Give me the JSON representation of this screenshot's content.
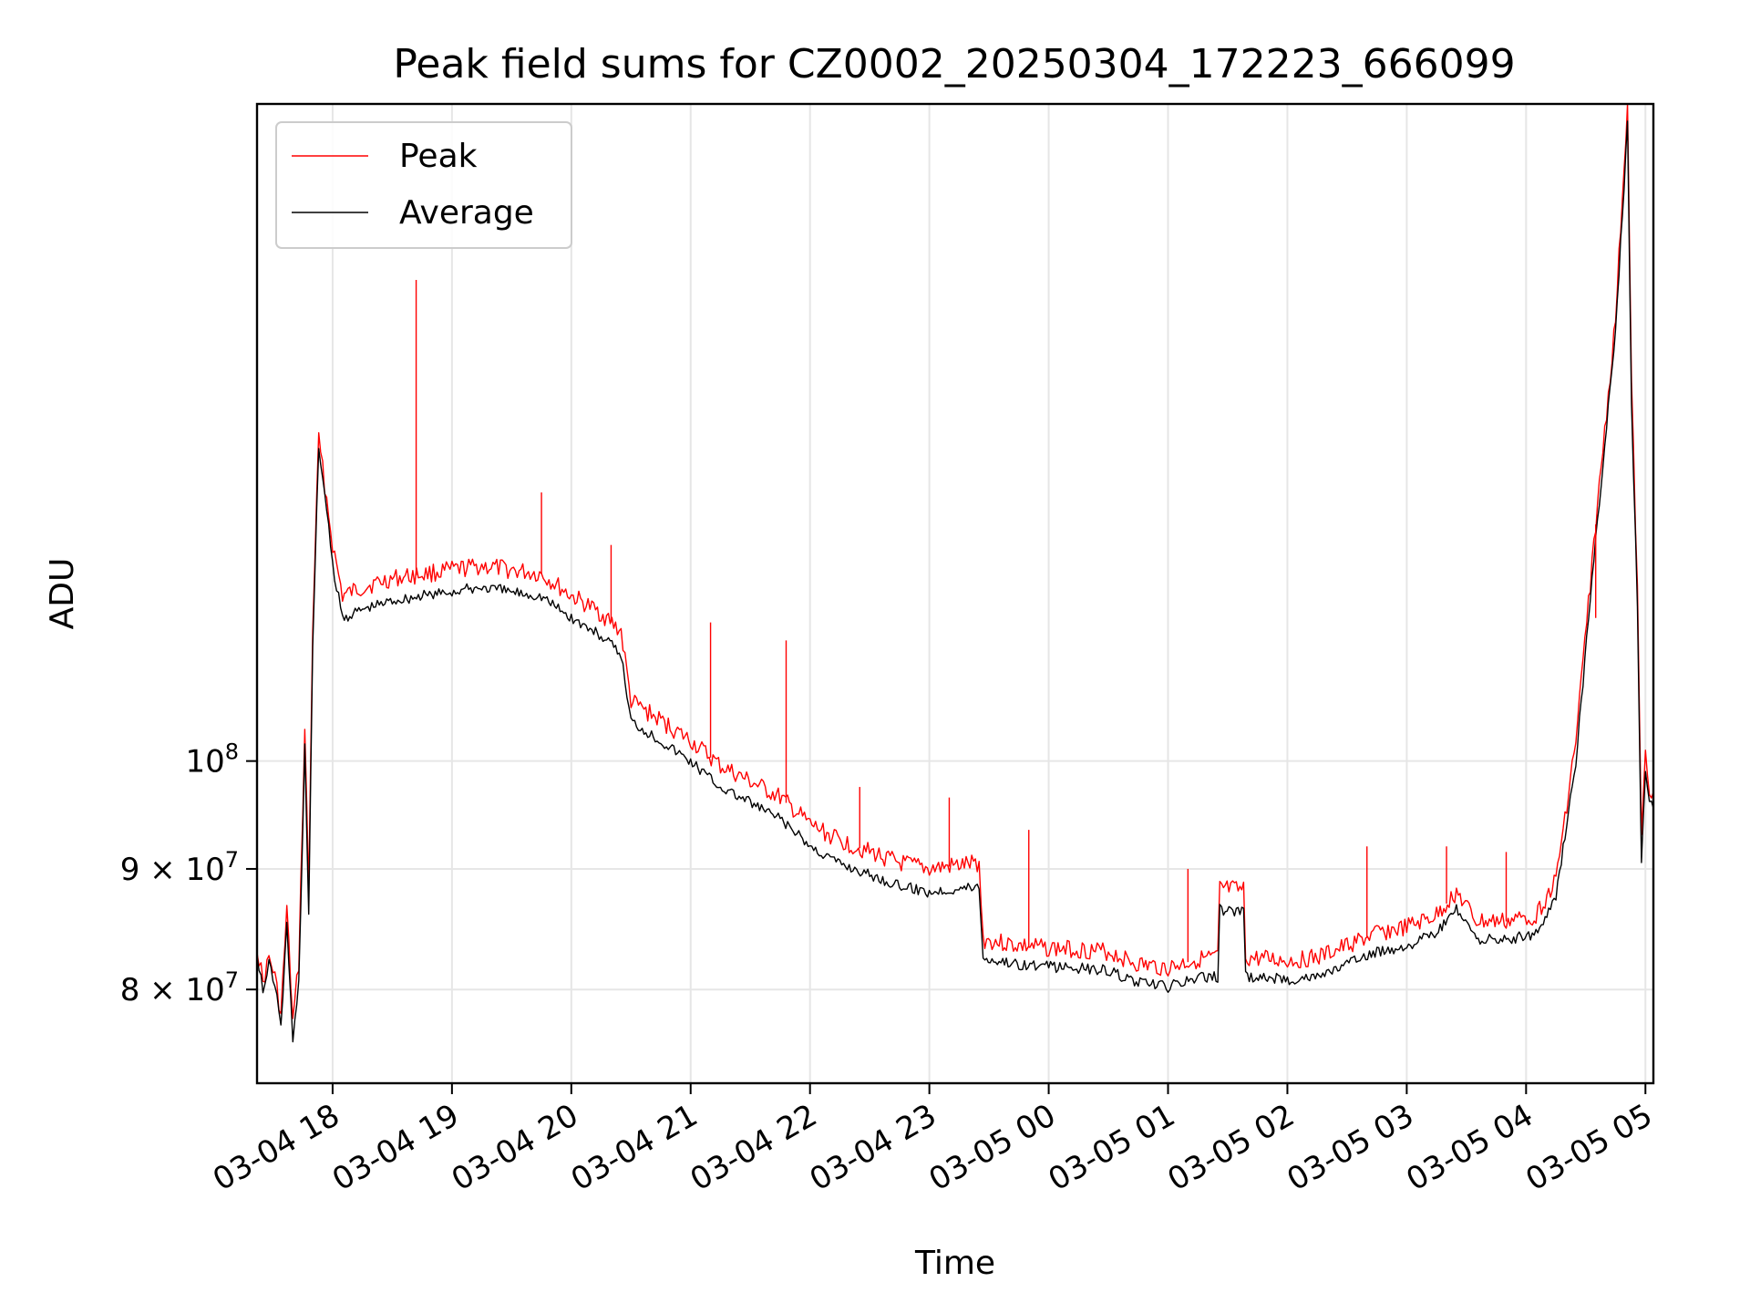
{
  "chart_data": {
    "type": "line",
    "title": "Peak field sums for CZ0002_20250304_172223_666099",
    "xlabel": "Time",
    "ylabel": "ADU",
    "yscale": "log",
    "grid": true,
    "legend_position": "top-left",
    "xlim": [
      "2025-03-04 17:22",
      "2025-03-05 05:04"
    ],
    "ylim": [
      73000000,
      190000000
    ],
    "x_ticks": [
      {
        "value": "2025-03-04 18:00",
        "label": "03-04 18"
      },
      {
        "value": "2025-03-04 19:00",
        "label": "03-04 19"
      },
      {
        "value": "2025-03-04 20:00",
        "label": "03-04 20"
      },
      {
        "value": "2025-03-04 21:00",
        "label": "03-04 21"
      },
      {
        "value": "2025-03-04 22:00",
        "label": "03-04 22"
      },
      {
        "value": "2025-03-04 23:00",
        "label": "03-04 23"
      },
      {
        "value": "2025-03-05 00:00",
        "label": "03-05 00"
      },
      {
        "value": "2025-03-05 01:00",
        "label": "03-05 01"
      },
      {
        "value": "2025-03-05 02:00",
        "label": "03-05 02"
      },
      {
        "value": "2025-03-05 03:00",
        "label": "03-05 03"
      },
      {
        "value": "2025-03-05 04:00",
        "label": "03-05 04"
      },
      {
        "value": "2025-03-05 05:00",
        "label": "03-05 05"
      }
    ],
    "y_ticks": [
      {
        "value": 80000000,
        "label": "8 × 10",
        "exp": "7"
      },
      {
        "value": 90000000,
        "label": "9 × 10",
        "exp": "7"
      },
      {
        "value": 100000000,
        "label": "10",
        "exp": "8"
      }
    ],
    "series": [
      {
        "name": "Average",
        "color": "#000000",
        "points": [
          [
            "2025-03-04 17:22",
            83000000
          ],
          [
            "2025-03-04 17:25",
            79800000
          ],
          [
            "2025-03-04 17:28",
            82000000
          ],
          [
            "2025-03-04 17:31",
            80500000
          ],
          [
            "2025-03-04 17:34",
            77000000
          ],
          [
            "2025-03-04 17:37",
            85500000
          ],
          [
            "2025-03-04 17:40",
            76000000
          ],
          [
            "2025-03-04 17:43",
            80500000
          ],
          [
            "2025-03-04 17:46",
            101500000
          ],
          [
            "2025-03-04 17:48",
            86000000
          ],
          [
            "2025-03-04 17:50",
            112000000
          ],
          [
            "2025-03-04 17:53",
            136000000
          ],
          [
            "2025-03-04 17:56",
            130000000
          ],
          [
            "2025-03-04 18:00",
            121000000
          ],
          [
            "2025-03-04 18:05",
            115000000
          ],
          [
            "2025-03-04 18:15",
            116000000
          ],
          [
            "2025-03-04 18:30",
            117000000
          ],
          [
            "2025-03-04 18:45",
            117500000
          ],
          [
            "2025-03-04 19:00",
            118000000
          ],
          [
            "2025-03-04 19:15",
            118500000
          ],
          [
            "2025-03-04 19:30",
            118000000
          ],
          [
            "2025-03-04 19:45",
            117500000
          ],
          [
            "2025-03-04 20:00",
            115000000
          ],
          [
            "2025-03-04 20:15",
            113000000
          ],
          [
            "2025-03-04 20:25",
            111000000
          ],
          [
            "2025-03-04 20:30",
            104000000
          ],
          [
            "2025-03-04 20:45",
            102000000
          ],
          [
            "2025-03-04 21:00",
            100000000
          ],
          [
            "2025-03-04 21:15",
            97500000
          ],
          [
            "2025-03-04 21:30",
            96000000
          ],
          [
            "2025-03-04 21:45",
            94500000
          ],
          [
            "2025-03-04 22:00",
            92000000
          ],
          [
            "2025-03-04 22:15",
            90500000
          ],
          [
            "2025-03-04 22:30",
            89500000
          ],
          [
            "2025-03-04 22:45",
            88500000
          ],
          [
            "2025-03-04 23:00",
            88000000
          ],
          [
            "2025-03-04 23:25",
            88500000
          ],
          [
            "2025-03-04 23:27",
            82500000
          ],
          [
            "2025-03-04 23:45",
            82000000
          ],
          [
            "2025-03-05 00:00",
            81800000
          ],
          [
            "2025-03-05 00:15",
            81700000
          ],
          [
            "2025-03-05 00:30",
            81500000
          ],
          [
            "2025-03-05 00:45",
            80500000
          ],
          [
            "2025-03-05 01:00",
            80200000
          ],
          [
            "2025-03-05 01:15",
            80900000
          ],
          [
            "2025-03-05 01:25",
            81000000
          ],
          [
            "2025-03-05 01:26",
            86500000
          ],
          [
            "2025-03-05 01:38",
            86300000
          ],
          [
            "2025-03-05 01:39",
            81000000
          ],
          [
            "2025-03-05 02:00",
            80800000
          ],
          [
            "2025-03-05 02:15",
            81000000
          ],
          [
            "2025-03-05 02:30",
            82000000
          ],
          [
            "2025-03-05 02:45",
            83000000
          ],
          [
            "2025-03-05 03:00",
            83500000
          ],
          [
            "2025-03-05 03:15",
            84500000
          ],
          [
            "2025-03-05 03:25",
            86500000
          ],
          [
            "2025-03-05 03:35",
            84000000
          ],
          [
            "2025-03-05 03:50",
            84000000
          ],
          [
            "2025-03-05 04:05",
            84500000
          ],
          [
            "2025-03-05 04:15",
            87500000
          ],
          [
            "2025-03-05 04:25",
            100000000
          ],
          [
            "2025-03-05 04:35",
            124000000
          ],
          [
            "2025-03-05 04:45",
            152000000
          ],
          [
            "2025-03-05 04:51",
            186000000
          ],
          [
            "2025-03-05 04:53",
            142000000
          ],
          [
            "2025-03-05 04:56",
            116000000
          ],
          [
            "2025-03-05 04:58",
            91000000
          ],
          [
            "2025-03-05 05:00",
            99000000
          ],
          [
            "2025-03-05 05:02",
            96000000
          ],
          [
            "2025-03-05 05:04",
            95500000
          ]
        ]
      },
      {
        "name": "Peak",
        "color": "#ff0000",
        "points": [
          [
            "2025-03-04 17:22",
            83500000
          ],
          [
            "2025-03-04 17:25",
            80500000
          ],
          [
            "2025-03-04 17:28",
            82500000
          ],
          [
            "2025-03-04 17:31",
            81000000
          ],
          [
            "2025-03-04 17:34",
            78000000
          ],
          [
            "2025-03-04 17:37",
            86500000
          ],
          [
            "2025-03-04 17:40",
            77500000
          ],
          [
            "2025-03-04 17:43",
            82000000
          ],
          [
            "2025-03-04 17:46",
            103000000
          ],
          [
            "2025-03-04 17:48",
            88000000
          ],
          [
            "2025-03-04 17:50",
            114000000
          ],
          [
            "2025-03-04 17:53",
            137000000
          ],
          [
            "2025-03-04 17:56",
            131000000
          ],
          [
            "2025-03-04 18:00",
            123500000
          ],
          [
            "2025-03-04 18:05",
            117500000
          ],
          [
            "2025-03-04 18:15",
            118500000
          ],
          [
            "2025-03-04 18:30",
            119500000
          ],
          [
            "2025-03-04 18:45",
            120000000
          ],
          [
            "2025-03-04 19:00",
            120500000
          ],
          [
            "2025-03-04 19:15",
            121000000
          ],
          [
            "2025-03-04 19:30",
            120500000
          ],
          [
            "2025-03-04 19:45",
            120000000
          ],
          [
            "2025-03-04 20:00",
            117500000
          ],
          [
            "2025-03-04 20:15",
            115500000
          ],
          [
            "2025-03-04 20:25",
            113500000
          ],
          [
            "2025-03-04 20:30",
            106000000
          ],
          [
            "2025-03-04 20:45",
            104000000
          ],
          [
            "2025-03-04 21:00",
            102000000
          ],
          [
            "2025-03-04 21:15",
            99500000
          ],
          [
            "2025-03-04 21:30",
            98000000
          ],
          [
            "2025-03-04 21:45",
            96500000
          ],
          [
            "2025-03-04 22:00",
            94000000
          ],
          [
            "2025-03-04 22:15",
            92500000
          ],
          [
            "2025-03-04 22:30",
            91500000
          ],
          [
            "2025-03-04 22:45",
            90500000
          ],
          [
            "2025-03-04 23:00",
            90000000
          ],
          [
            "2025-03-04 23:25",
            90500000
          ],
          [
            "2025-03-04 23:27",
            84000000
          ],
          [
            "2025-03-04 23:45",
            83500000
          ],
          [
            "2025-03-05 00:00",
            83300000
          ],
          [
            "2025-03-05 00:15",
            83200000
          ],
          [
            "2025-03-05 00:30",
            83000000
          ],
          [
            "2025-03-05 00:45",
            82000000
          ],
          [
            "2025-03-05 01:00",
            81700000
          ],
          [
            "2025-03-05 01:15",
            82400000
          ],
          [
            "2025-03-05 01:25",
            82500000
          ],
          [
            "2025-03-05 01:26",
            88300000
          ],
          [
            "2025-03-05 01:38",
            88100000
          ],
          [
            "2025-03-05 01:39",
            82500000
          ],
          [
            "2025-03-05 02:00",
            82300000
          ],
          [
            "2025-03-05 02:15",
            82500000
          ],
          [
            "2025-03-05 02:30",
            83500000
          ],
          [
            "2025-03-05 02:45",
            84500000
          ],
          [
            "2025-03-05 03:00",
            85000000
          ],
          [
            "2025-03-05 03:15",
            86000000
          ],
          [
            "2025-03-05 03:25",
            88000000
          ],
          [
            "2025-03-05 03:35",
            85500000
          ],
          [
            "2025-03-05 03:50",
            85500000
          ],
          [
            "2025-03-05 04:05",
            86000000
          ],
          [
            "2025-03-05 04:15",
            89000000
          ],
          [
            "2025-03-05 04:25",
            102000000
          ],
          [
            "2025-03-05 04:35",
            126000000
          ],
          [
            "2025-03-05 04:45",
            154000000
          ],
          [
            "2025-03-05 04:51",
            190000000
          ],
          [
            "2025-03-05 04:53",
            144000000
          ],
          [
            "2025-03-05 04:56",
            118000000
          ],
          [
            "2025-03-05 04:58",
            92500000
          ],
          [
            "2025-03-05 05:00",
            101000000
          ],
          [
            "2025-03-05 05:02",
            97500000
          ],
          [
            "2025-03-05 05:04",
            97000000
          ]
        ]
      }
    ],
    "peak_spikes": [
      [
        "2025-03-04 18:42",
        160000000
      ],
      [
        "2025-03-04 19:45",
        130000000
      ],
      [
        "2025-03-04 20:20",
        123500000
      ],
      [
        "2025-03-04 21:10",
        114500000
      ],
      [
        "2025-03-04 21:48",
        112500000
      ],
      [
        "2025-03-04 22:25",
        97500000
      ],
      [
        "2025-03-04 23:10",
        96500000
      ],
      [
        "2025-03-04 23:50",
        93500000
      ],
      [
        "2025-03-05 01:10",
        90000000
      ],
      [
        "2025-03-05 02:40",
        92000000
      ],
      [
        "2025-03-05 03:20",
        92000000
      ],
      [
        "2025-03-05 03:50",
        91500000
      ],
      [
        "2025-03-05 04:35",
        115000000
      ]
    ]
  }
}
